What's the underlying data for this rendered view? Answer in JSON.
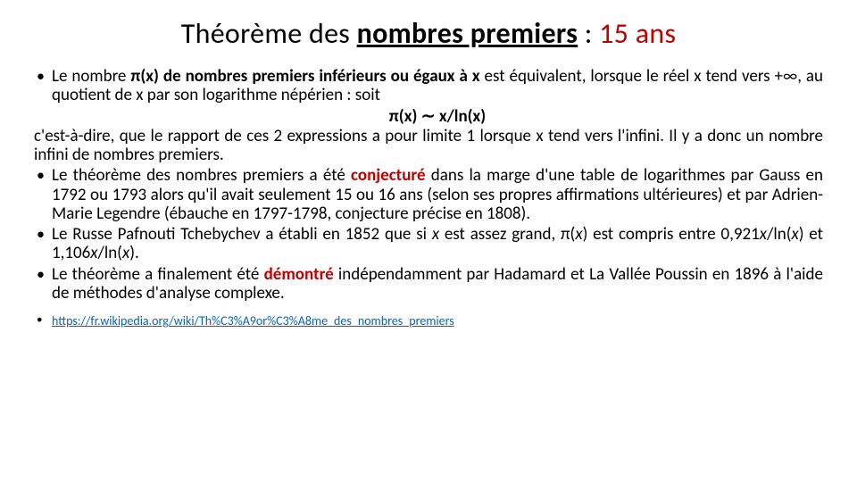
{
  "title": {
    "part1": "Théorème des ",
    "boldUnderline": "nombres premiers",
    "part2": " :  ",
    "redPart": "15 ans"
  },
  "items": [
    {
      "pre": "Le nombre ",
      "bold1": "π(x) de nombres premiers inférieurs ou égaux à x",
      "post1": " est équivalent, lorsque le réel x tend vers +∞, au quotient de x par son logarithme népérien : soit",
      "formula": "π(x) ∼ x/ln(x)",
      "cont": "c'est-à-dire, que le rapport de ces 2 expressions a pour limite 1 lorsque x tend vers l'infini. Il y a donc un nombre infini de nombres premiers."
    },
    {
      "pre": "Le théorème des nombres premiers a été ",
      "red": "conjecturé",
      "post": " dans la marge d'une table de logarithmes par Gauss en 1792 ou 1793 alors qu'il avait seulement 15 ou 16 ans (selon ses propres affirmations ultérieures) et par Adrien-Marie Legendre (ébauche en 1797-1798, conjecture précise en 1808)."
    },
    {
      "text": "Le Russe Pafnouti Tchebychev a établi en 1852 que si <i>x</i> est assez grand, π(<i>x</i>) est compris entre 0,921<i>x</i>/ln(<i>x</i>) et 1,106<i>x</i>/ln(<i>x</i>)."
    },
    {
      "pre": "Le théorème a finalement été ",
      "red": "démontré",
      "post": " indépendamment par Hadamard et La Vallée Poussin en 1896 à l'aide de méthodes d'analyse complexe."
    }
  ],
  "link": {
    "text": "https://fr.wikipedia.org/wiki/Th%C3%A9or%C3%A8me_des_nombres_premiers",
    "href": "https://fr.wikipedia.org/wiki/Th%C3%A9or%C3%A8me_des_nombres_premiers"
  },
  "colors": {
    "red": "#c00000",
    "link": "#0563c1",
    "text": "#000000",
    "background": "#ffffff"
  },
  "typography": {
    "title_fontsize": 32,
    "body_fontsize": 19,
    "link_fontsize": 14,
    "font_family": "Calibri"
  }
}
